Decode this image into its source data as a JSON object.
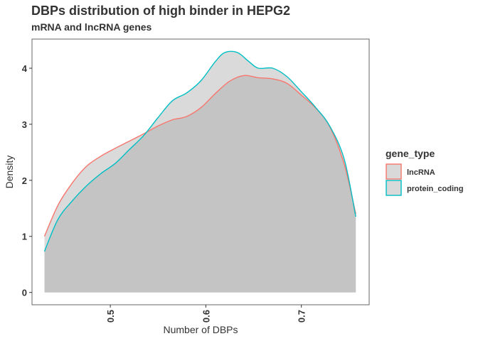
{
  "chart_data": {
    "type": "area",
    "title": "DBPs distribution of high binder in HEPG2",
    "subtitle": "mRNA and lncRNA genes",
    "xlabel": "Number of DBPs",
    "ylabel": "Density",
    "xlim": [
      0.418,
      0.771
    ],
    "ylim": [
      -0.22,
      4.52
    ],
    "x_ticks": [
      0.5,
      0.6,
      0.7
    ],
    "x_tick_labels": [
      "0.5",
      "0.6",
      "0.7"
    ],
    "y_ticks": [
      0,
      1,
      2,
      3,
      4
    ],
    "y_tick_labels": [
      "0",
      "1",
      "2",
      "3",
      "4"
    ],
    "grid": false,
    "legend": {
      "title": "gene_type",
      "position": "right"
    },
    "series": [
      {
        "name": "lncRNA",
        "color": "#F8766D",
        "x": [
          0.431,
          0.445,
          0.46,
          0.475,
          0.49,
          0.505,
          0.52,
          0.535,
          0.55,
          0.565,
          0.58,
          0.595,
          0.61,
          0.625,
          0.64,
          0.655,
          0.67,
          0.685,
          0.7,
          0.715,
          0.73,
          0.745,
          0.757
        ],
        "y": [
          1.0,
          1.55,
          1.95,
          2.25,
          2.43,
          2.57,
          2.7,
          2.83,
          2.97,
          3.08,
          3.14,
          3.3,
          3.55,
          3.77,
          3.87,
          3.83,
          3.81,
          3.73,
          3.52,
          3.29,
          2.95,
          2.28,
          1.4
        ]
      },
      {
        "name": "protein_coding",
        "color": "#00BFC4",
        "x": [
          0.431,
          0.445,
          0.46,
          0.475,
          0.49,
          0.505,
          0.52,
          0.535,
          0.55,
          0.565,
          0.58,
          0.595,
          0.61,
          0.62,
          0.633,
          0.645,
          0.655,
          0.67,
          0.685,
          0.7,
          0.715,
          0.73,
          0.745,
          0.757
        ],
        "y": [
          0.73,
          1.3,
          1.63,
          1.9,
          2.12,
          2.3,
          2.55,
          2.8,
          3.12,
          3.42,
          3.56,
          3.78,
          4.12,
          4.28,
          4.28,
          4.12,
          4.0,
          4.0,
          3.85,
          3.58,
          3.3,
          2.96,
          2.37,
          1.35
        ]
      }
    ]
  }
}
